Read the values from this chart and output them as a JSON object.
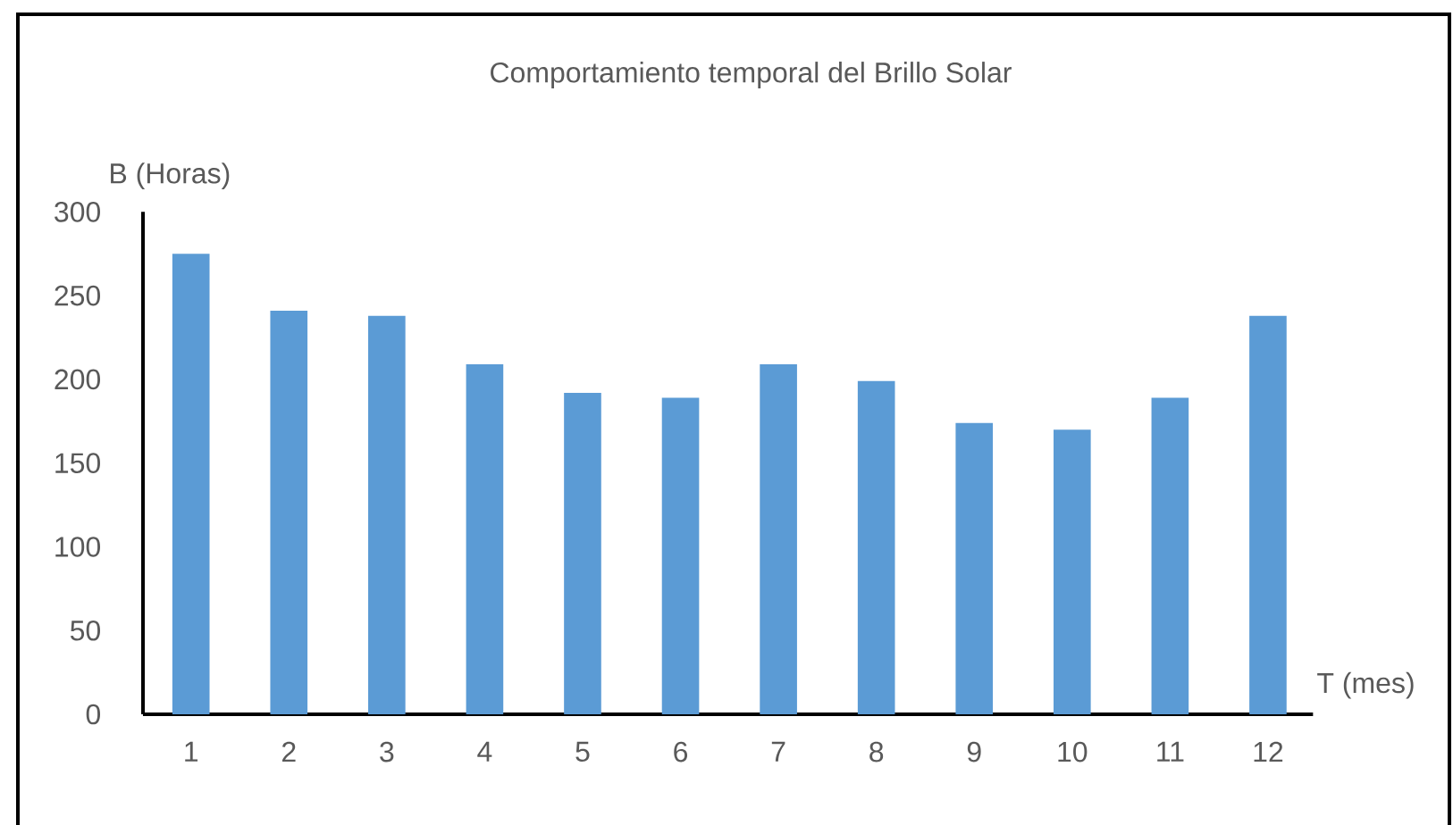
{
  "chart_data": {
    "type": "bar",
    "title": "Comportamiento temporal del Brillo Solar",
    "xlabel": "T (mes)",
    "ylabel": "B (Horas)",
    "categories": [
      "1",
      "2",
      "3",
      "4",
      "5",
      "6",
      "7",
      "8",
      "9",
      "10",
      "11",
      "12"
    ],
    "values": [
      275,
      241,
      238,
      209,
      192,
      189,
      209,
      199,
      174,
      170,
      189,
      238
    ],
    "color": "#5b9bd5",
    "ylim": [
      0,
      300
    ],
    "yticks": [
      0,
      50,
      100,
      150,
      200,
      250,
      300
    ]
  }
}
